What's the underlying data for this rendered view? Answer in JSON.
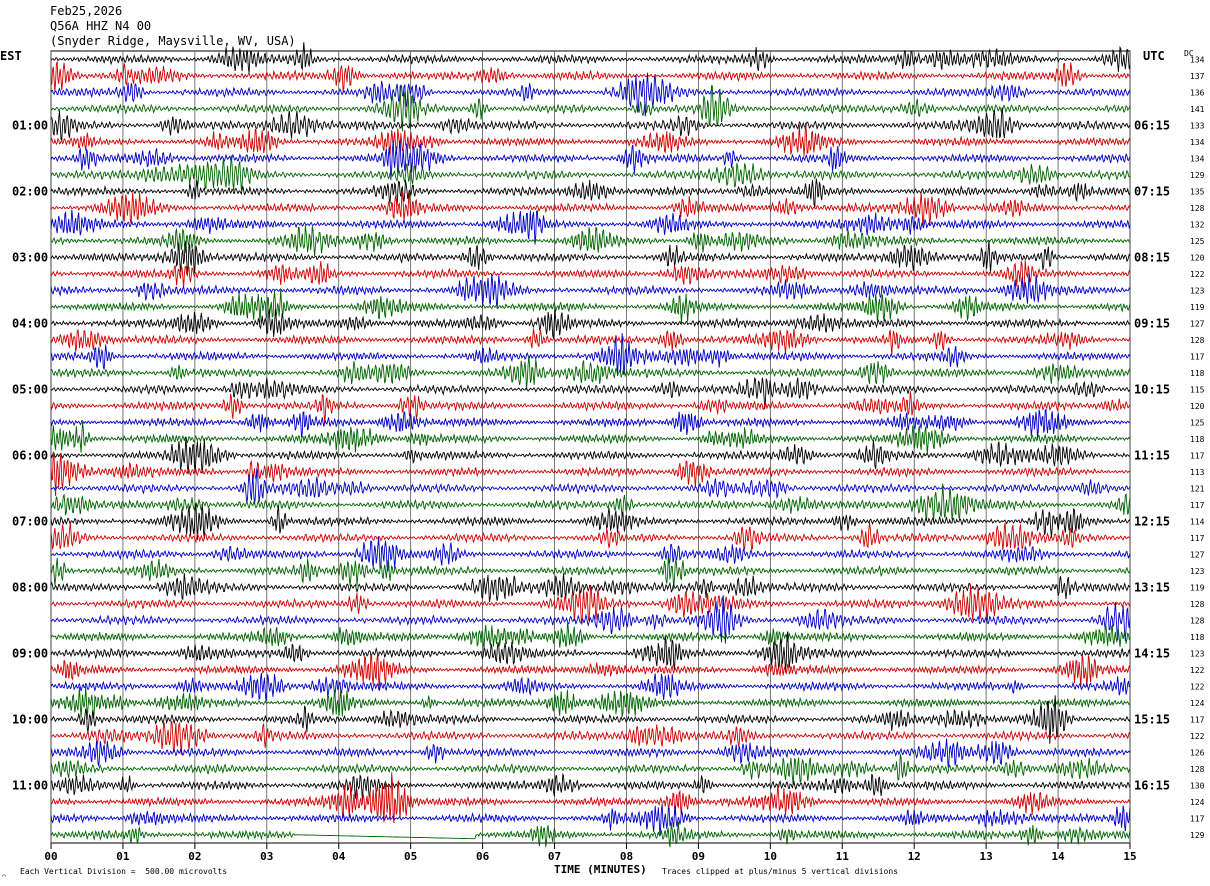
{
  "header": {
    "date": "Feb25,2026",
    "station": "Q56A HHZ N4 00",
    "location": "(Snyder Ridge, Maysville, WV, USA)"
  },
  "left_axis_label": "EST",
  "right_axis_label": "UTC",
  "dc_label": "DC",
  "footer": {
    "scale_note": "Each Vertical Division =  500.00 microvolts",
    "clip_note": "Traces clipped at plus/minus 5 vertical divisions",
    "corner_mark": "⌒"
  },
  "colors": {
    "trace_cycle": [
      "#000000",
      "#d00000",
      "#0000c8",
      "#006400"
    ],
    "grid": "#000000",
    "background": "#ffffff"
  },
  "chart_data": {
    "type": "helicorder",
    "title": "Feb25,2026 Q56A HHZ N4 00 (Snyder Ridge, Maysville, WV, USA)",
    "xlabel": "TIME (MINUTES)",
    "x_ticks": [
      "00",
      "01",
      "02",
      "03",
      "04",
      "05",
      "06",
      "07",
      "08",
      "09",
      "10",
      "11",
      "12",
      "13",
      "14",
      "15"
    ],
    "xlim": [
      0,
      15
    ],
    "minutes_per_line": 15,
    "line_count": 48,
    "grid": true,
    "left_time_labels": [
      {
        "line": 4,
        "label": "01:00"
      },
      {
        "line": 8,
        "label": "02:00"
      },
      {
        "line": 12,
        "label": "03:00"
      },
      {
        "line": 16,
        "label": "04:00"
      },
      {
        "line": 20,
        "label": "05:00"
      },
      {
        "line": 24,
        "label": "06:00"
      },
      {
        "line": 28,
        "label": "07:00"
      },
      {
        "line": 32,
        "label": "08:00"
      },
      {
        "line": 36,
        "label": "09:00"
      },
      {
        "line": 40,
        "label": "10:00"
      },
      {
        "line": 44,
        "label": "11:00"
      }
    ],
    "right_time_labels": [
      {
        "line": 4,
        "label": "06:15"
      },
      {
        "line": 8,
        "label": "07:15"
      },
      {
        "line": 12,
        "label": "08:15"
      },
      {
        "line": 16,
        "label": "09:15"
      },
      {
        "line": 20,
        "label": "10:15"
      },
      {
        "line": 24,
        "label": "11:15"
      },
      {
        "line": 28,
        "label": "12:15"
      },
      {
        "line": 32,
        "label": "13:15"
      },
      {
        "line": 36,
        "label": "14:15"
      },
      {
        "line": 40,
        "label": "15:15"
      },
      {
        "line": 44,
        "label": "16:15"
      }
    ],
    "dc_offsets": [
      "134",
      "137",
      "136",
      "141",
      "133",
      "134",
      "134",
      "129",
      "135",
      "128",
      "132",
      "125",
      "120",
      "122",
      "123",
      "119",
      "127",
      "128",
      "117",
      "118",
      "115",
      "120",
      "125",
      "118",
      "117",
      "113",
      "121",
      "117",
      "114",
      "117",
      "127",
      "123",
      "119",
      "128",
      "128",
      "118",
      "123",
      "122",
      "122",
      "124",
      "117",
      "122",
      "126",
      "128",
      "130",
      "124",
      "117",
      "129"
    ],
    "end_gap": {
      "line": 47,
      "from_minute": 3.4,
      "to_minute": 5.9
    }
  }
}
